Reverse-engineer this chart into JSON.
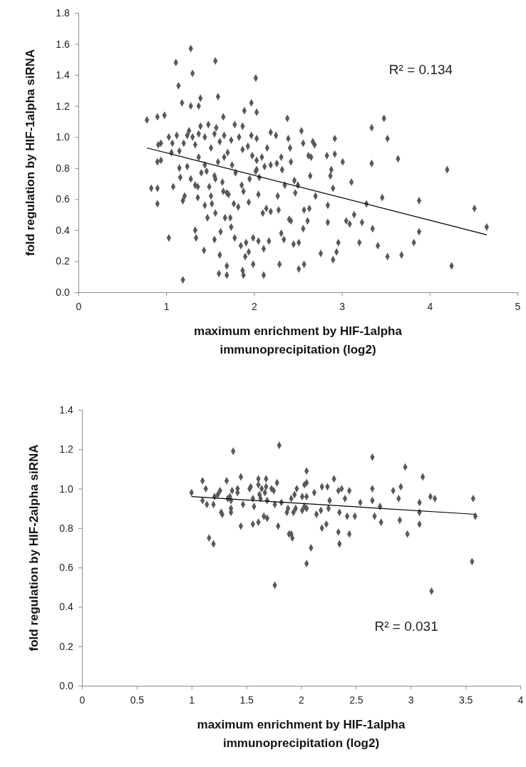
{
  "chart_data": [
    {
      "type": "scatter",
      "xlabel": "maximum enrichment by HIF-1alpha immunoprecipitation (log2)",
      "ylabel": "fold regulation by HIF-1alpha siRNA",
      "annotations": [
        "R² = 0.134"
      ],
      "xlim": [
        0,
        5
      ],
      "xticks": [
        0,
        1,
        2,
        3,
        4,
        5
      ],
      "ylim": [
        0,
        1.8
      ],
      "yticks": [
        {
          "value": 0,
          "label": "0.0"
        },
        {
          "value": 0.2,
          "label": "0.2"
        },
        {
          "value": 0.4,
          "label": "0.4"
        },
        {
          "value": 0.6,
          "label": "0.6"
        },
        {
          "value": 0.8,
          "label": "0.8"
        },
        {
          "value": 1.0,
          "label": "1.0"
        },
        {
          "value": 1.2,
          "label": "1.2"
        },
        {
          "value": 1.4,
          "label": "1.4"
        },
        {
          "value": 1.6,
          "label": "1.6"
        },
        {
          "value": 1.8,
          "label": "1.8"
        }
      ],
      "grid": false,
      "series": [
        {
          "marker": "diamond",
          "color": "#595959",
          "x": [
            1.28,
            1.11,
            1.56,
            1.3,
            1.14,
            1.39,
            1.59,
            2.02,
            1.18,
            1.28,
            1.37,
            1.97,
            1.89,
            2.03,
            1.65,
            2.38,
            0.78,
            0.9,
            0.98,
            1.19,
            1.03,
            0.83,
            0.9,
            0.9,
            1.33,
            1.34,
            1.43,
            1.6,
            1.69,
            1.69,
            1.61,
            1.55,
            1.62,
            1.78,
            1.74,
            1.85,
            1.91,
            1.94,
            1.9,
            1.88,
            1.87,
            1.99,
            1.99,
            2.05,
            2.11,
            2.11,
            2.17,
            2.29,
            2.31,
            2.34,
            2.45,
            2.51,
            2.51,
            2.57,
            2.76,
            2.56,
            2.61,
            2.57,
            2.63,
            2.7,
            2.84,
            2.84,
            1.47,
            1.56,
            1.67,
            1.73,
            2.1,
            2.14,
            2.19,
            2.28,
            2.4,
            2.42,
            1.19,
            1.21,
            1.08,
            1.36,
            1.44,
            1.51,
            1.52,
            1.65,
            1.71,
            1.77,
            1.82,
            1.86,
            1.94,
            2.05,
            2.27,
            2.35,
            2.47,
            1.33,
            1.36,
            1.49,
            1.56,
            1.69,
            1.88,
            1.95,
            1.28,
            1.16,
            1.4,
            1.46,
            1.55,
            1.64,
            1.79,
            2.02,
            2.06,
            2.12,
            2.19,
            2.26,
            2.32,
            2.46,
            2.5,
            2.64,
            0.91,
            0.94,
            0.9,
            0.94,
            1.03,
            1.07,
            1.12,
            1.15,
            1.2,
            1.24,
            1.26,
            1.3,
            1.33,
            1.37,
            1.39,
            1.44,
            1.48,
            1.51,
            1.55,
            1.57,
            1.61,
            1.66,
            1.7,
            1.74,
            1.78,
            1.83,
            1.87,
            1.87,
            1.93,
            1.97,
            1.98,
            2.03,
            2.03,
            2.09,
            2.15,
            2.19,
            2.25,
            2.31,
            2.39,
            2.41,
            2.42,
            2.54,
            2.56,
            2.67,
            2.69,
            2.62,
            2.65,
            2.83,
            1.06,
            1.15,
            1.24,
            1.37,
            1.44,
            1.59,
            1.66,
            1.75,
            2.03,
            3.48,
            3.34,
            3.52,
            2.92,
            2.92,
            3.01,
            3.34,
            3.64,
            4.2,
            2.88,
            2.87,
            3.11,
            2.9,
            3.46,
            3.28,
            3.88,
            4.51,
            4.65,
            3.14,
            3.05,
            3.09,
            3.23,
            3.35,
            3.88,
            2.96,
            3.2,
            3.41,
            3.82,
            2.94,
            2.9,
            3.52,
            3.68,
            4.25
          ],
          "values": [
            1.57,
            1.48,
            1.49,
            1.41,
            1.33,
            1.25,
            1.26,
            1.38,
            1.22,
            1.2,
            1.2,
            1.22,
            1.17,
            1.16,
            1.13,
            1.12,
            1.11,
            1.13,
            1.14,
            0.08,
            0.35,
            0.67,
            0.67,
            0.57,
            0.4,
            0.35,
            0.27,
            0.12,
            0.11,
            0.17,
            0.24,
            0.34,
            0.39,
            0.35,
            0.42,
            0.3,
            0.32,
            0.26,
            0.23,
            0.11,
            0.14,
            0.18,
            0.35,
            0.33,
            0.28,
            0.11,
            0.33,
            0.18,
            0.38,
            0.34,
            0.31,
            0.32,
            0.15,
            0.18,
            0.25,
            0.41,
            0.46,
            0.53,
            0.54,
            0.62,
            0.45,
            0.56,
            0.48,
            0.51,
            0.48,
            0.48,
            0.51,
            0.54,
            0.52,
            0.53,
            0.47,
            0.46,
            0.59,
            0.62,
            0.68,
            0.61,
            0.56,
            0.62,
            0.57,
            0.65,
            0.63,
            0.57,
            0.55,
            0.69,
            0.58,
            0.63,
            0.62,
            0.69,
            0.64,
            0.69,
            0.68,
            0.68,
            0.73,
            0.64,
            0.65,
            0.73,
            0.73,
            0.74,
            0.77,
            0.78,
            0.75,
            0.71,
            0.77,
            0.78,
            0.74,
            0.81,
            0.82,
            0.83,
            0.79,
            0.72,
            0.69,
            0.75,
            0.95,
            0.96,
            0.84,
            0.85,
            1.0,
            0.96,
            1.01,
            0.91,
            0.96,
            1.01,
            1.04,
            1.0,
            0.95,
            1.02,
            1.07,
            1.0,
            1.08,
            0.93,
            1.02,
            1.06,
            0.97,
            1.01,
            0.9,
            0.98,
            1.08,
            1.0,
            1.07,
            0.92,
            0.94,
            1.01,
            0.88,
            0.99,
            0.85,
            0.87,
            0.93,
            1.03,
            1.01,
            0.87,
            0.99,
            0.93,
            0.84,
            1.04,
            0.96,
            0.97,
            0.95,
            0.88,
            0.87,
            0.88,
            0.9,
            0.8,
            0.81,
            0.87,
            0.82,
            0.84,
            0.87,
            0.82,
            0.79,
            1.12,
            1.06,
            0.99,
            0.99,
            0.89,
            0.84,
            0.83,
            0.86,
            0.79,
            0.79,
            0.75,
            0.71,
            0.67,
            0.61,
            0.57,
            0.59,
            0.54,
            0.42,
            0.5,
            0.46,
            0.44,
            0.45,
            0.41,
            0.39,
            0.32,
            0.32,
            0.3,
            0.32,
            0.26,
            0.21,
            0.23,
            0.24,
            0.17
          ]
        },
        {
          "type": "line",
          "marker": "none",
          "line_style": "solid",
          "color": "#000000",
          "x": [
            0.78,
            4.65
          ],
          "values": [
            0.93,
            0.37
          ]
        }
      ]
    },
    {
      "type": "scatter",
      "xlabel": "maximum enrichment by HIF-1alpha immunoprecipitation (log2)",
      "ylabel": "fold regulation by HIF-2alpha siRNA",
      "annotations": [
        "R² = 0.031"
      ],
      "xlim": [
        0,
        4
      ],
      "xticks": [
        0,
        0.5,
        1,
        1.5,
        2,
        2.5,
        3,
        3.5,
        4
      ],
      "ylim": [
        0,
        1.4
      ],
      "yticks": [
        {
          "value": 0,
          "label": "0.0"
        },
        {
          "value": 0.2,
          "label": "0.2"
        },
        {
          "value": 0.4,
          "label": "0.4"
        },
        {
          "value": 0.6,
          "label": "0.6"
        },
        {
          "value": 0.8,
          "label": "0.8"
        },
        {
          "value": 1.0,
          "label": "1.0"
        },
        {
          "value": 1.2,
          "label": "1.2"
        },
        {
          "value": 1.4,
          "label": "1.4"
        }
      ],
      "grid": false,
      "series": [
        {
          "marker": "diamond",
          "color": "#595959",
          "x": [
            1.0,
            1.1,
            1.13,
            1.1,
            1.14,
            1.2,
            1.16,
            1.2,
            1.21,
            1.24,
            1.26,
            1.27,
            1.28,
            1.32,
            1.33,
            1.35,
            1.36,
            1.36,
            1.36,
            1.37,
            1.38,
            1.42,
            1.42,
            1.45,
            1.45,
            1.47,
            1.53,
            1.54,
            1.56,
            1.56,
            1.57,
            1.61,
            1.61,
            1.61,
            1.62,
            1.63,
            1.64,
            1.66,
            1.67,
            1.68,
            1.68,
            1.69,
            1.69,
            1.73,
            1.75,
            1.76,
            1.76,
            1.78,
            1.79,
            1.8,
            1.82,
            1.88,
            1.87,
            1.89,
            1.91,
            1.92,
            1.91,
            1.93,
            1.95,
            1.96,
            1.94,
            2.01,
            2.01,
            2.03,
            2.05,
            2.05,
            2.05,
            2.03,
            2.05,
            2.09,
            2.05,
            2.12,
            2.14,
            2.18,
            2.19,
            2.23,
            2.19,
            2.24,
            2.25,
            2.26,
            2.3,
            2.34,
            2.37,
            2.35,
            2.34,
            2.35,
            2.4,
            2.42,
            2.44,
            2.44,
            2.49,
            2.54,
            2.65,
            2.65,
            2.65,
            2.67,
            2.72,
            2.73,
            2.84,
            2.89,
            2.91,
            2.95,
            2.9,
            2.97,
            3.08,
            3.08,
            3.08,
            3.11,
            3.18,
            3.22,
            3.19,
            3.57,
            3.59,
            3.56
          ],
          "values": [
            0.98,
            1.04,
            1.0,
            0.94,
            0.92,
            0.92,
            0.75,
            0.72,
            0.96,
            0.97,
            0.99,
            0.88,
            0.87,
            1.04,
            0.95,
            0.96,
            0.94,
            0.88,
            0.9,
            0.99,
            1.19,
            1.0,
            0.98,
            0.81,
            1.06,
            0.92,
            1.0,
            1.01,
            0.95,
            0.82,
            0.91,
            1.05,
            1.02,
            0.83,
            0.97,
            0.95,
            1.0,
            0.86,
            0.98,
            1.05,
            1.01,
            0.85,
            0.94,
            1.0,
            0.99,
            0.92,
            0.51,
            1.03,
            0.81,
            1.22,
            0.93,
            0.9,
            0.88,
            0.77,
            0.77,
            0.75,
            0.95,
            0.88,
            0.9,
            1.0,
            0.97,
            0.96,
            0.89,
            1.02,
            1.09,
            1.03,
            0.96,
            0.91,
            0.9,
            0.7,
            0.62,
            0.98,
            0.87,
            0.89,
            0.8,
            0.82,
            1.01,
            1.01,
            0.9,
            0.94,
            1.05,
            0.99,
            1.0,
            0.88,
            0.78,
            0.72,
            0.95,
            0.86,
            0.99,
            0.77,
            0.86,
            0.93,
            1.16,
            1.0,
            0.94,
            0.86,
            0.91,
            0.83,
            0.99,
            0.95,
            1.01,
            1.11,
            0.84,
            0.77,
            0.93,
            0.88,
            0.82,
            1.06,
            0.96,
            0.95,
            0.48,
            0.95,
            0.86,
            0.63
          ]
        },
        {
          "type": "line",
          "marker": "none",
          "line_style": "solid",
          "color": "#000000",
          "x": [
            1.0,
            3.59
          ],
          "values": [
            0.96,
            0.87
          ]
        }
      ]
    }
  ]
}
